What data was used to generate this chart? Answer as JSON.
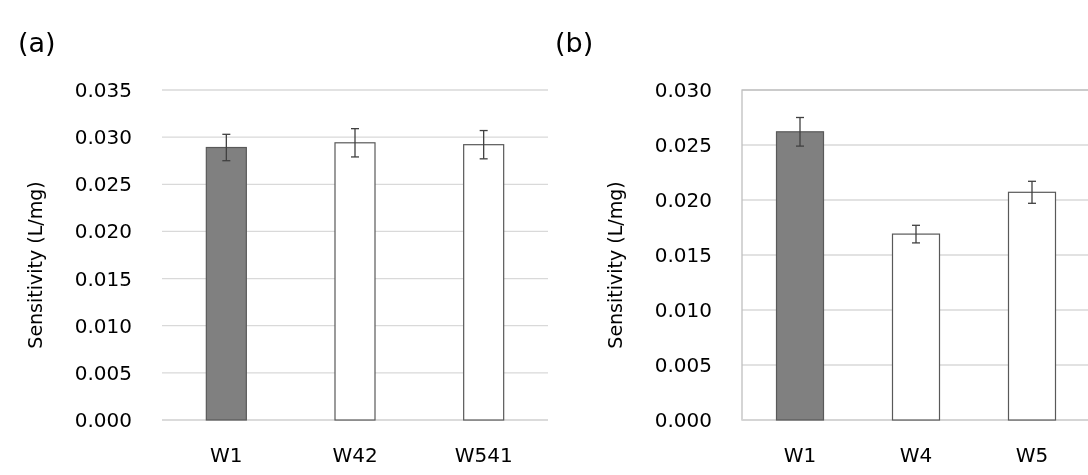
{
  "chart_data": [
    {
      "type": "bar",
      "title": "(a)",
      "ylabel": "Sensitivity (L/mg)",
      "categories": [
        "W1",
        "W42",
        "W541"
      ],
      "values": [
        0.0289,
        0.0294,
        0.0292
      ],
      "errors": [
        0.0014,
        0.0015,
        0.0015
      ],
      "colors": [
        "#808080",
        "#ffffff",
        "#ffffff"
      ],
      "ylim": [
        0,
        0.035
      ],
      "yticks": [
        {
          "value": 0,
          "label": "0.000"
        },
        {
          "value": 0.005,
          "label": "0.005"
        },
        {
          "value": 0.01,
          "label": "0.010"
        },
        {
          "value": 0.015,
          "label": "0.015"
        },
        {
          "value": 0.02,
          "label": "0.020"
        },
        {
          "value": 0.025,
          "label": "0.025"
        },
        {
          "value": 0.03,
          "label": "0.030"
        },
        {
          "value": 0.035,
          "label": "0.035"
        }
      ],
      "grid": "y"
    },
    {
      "type": "bar",
      "title": "(b)",
      "ylabel": "Sensitivity (L/mg)",
      "categories": [
        "W1",
        "W4",
        "W5"
      ],
      "values": [
        0.0262,
        0.0169,
        0.0207
      ],
      "errors": [
        0.0013,
        0.0008,
        0.001
      ],
      "colors": [
        "#808080",
        "#ffffff",
        "#ffffff"
      ],
      "ylim": [
        0,
        0.03
      ],
      "yticks": [
        {
          "value": 0,
          "label": "0.000"
        },
        {
          "value": 0.005,
          "label": "0.005"
        },
        {
          "value": 0.01,
          "label": "0.010"
        },
        {
          "value": 0.015,
          "label": "0.015"
        },
        {
          "value": 0.02,
          "label": "0.020"
        },
        {
          "value": 0.025,
          "label": "0.025"
        },
        {
          "value": 0.03,
          "label": "0.030"
        }
      ],
      "grid": "y"
    }
  ]
}
